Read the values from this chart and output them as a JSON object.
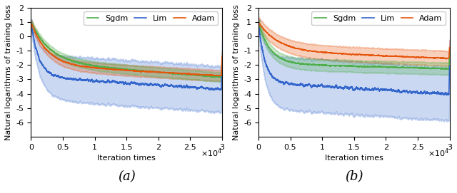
{
  "n_points": 30000,
  "xlim": [
    0,
    30000
  ],
  "ylim": [
    -7,
    2
  ],
  "yticks": [
    -6,
    -5,
    -4,
    -3,
    -2,
    -1,
    0,
    1,
    2
  ],
  "xticks": [
    0,
    5000,
    10000,
    15000,
    20000,
    25000,
    30000
  ],
  "xtick_labels": [
    "0",
    "0.5",
    "1",
    "1.5",
    "2",
    "2.5",
    "3"
  ],
  "xlabel": "Iteration times",
  "ylabel": "Natural logarithms of training loss",
  "label_a": "(a)",
  "label_b": "(b)",
  "colors": {
    "sgdm": "#4daf4a",
    "lim": "#3366cc",
    "adam": "#e6550d"
  },
  "fill_alpha_lim": 0.25,
  "fill_alpha_sgdm": 0.28,
  "fill_alpha_adam": 0.28,
  "seed_a": 42,
  "seed_b": 123,
  "tick_fontsize": 8,
  "label_fontsize": 8,
  "legend_fontsize": 8,
  "sublabel_fontsize": 13
}
